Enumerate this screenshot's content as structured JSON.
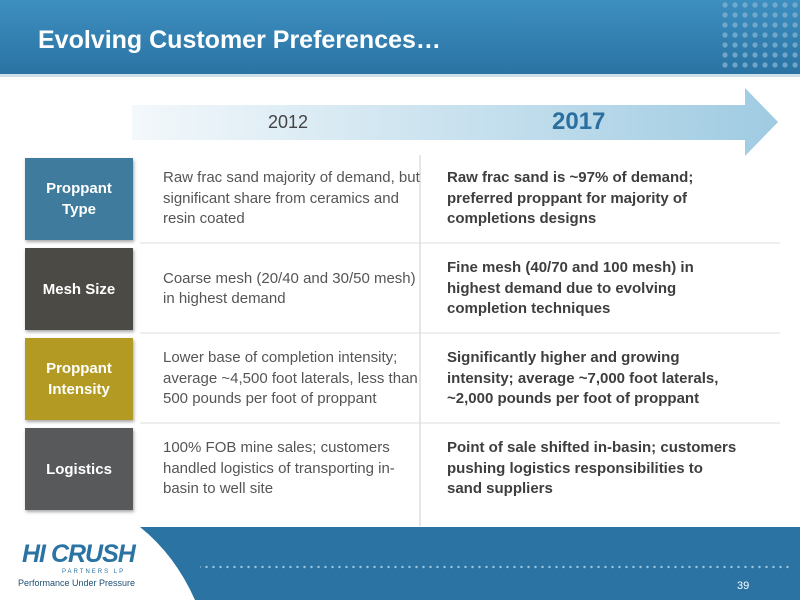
{
  "header": {
    "title": "Evolving Customer Preferences…"
  },
  "timeline": {
    "from": "2012",
    "to": "2017"
  },
  "rows": [
    {
      "label": "Proppant Type",
      "then": "Raw frac sand majority of demand, but significant share from ceramics and resin coated",
      "now": "Raw frac sand is ~97% of demand; preferred proppant for majority of completions designs"
    },
    {
      "label": "Mesh Size",
      "then": "Coarse mesh (20/40 and 30/50 mesh) in highest demand",
      "now": "Fine mesh (40/70 and 100 mesh) in highest demand due to evolving completion techniques"
    },
    {
      "label": "Proppant Intensity",
      "then": "Lower base of completion intensity; average ~4,500 foot laterals, less than 500 pounds per foot of proppant",
      "now": "Significantly higher and growing intensity; average ~7,000 foot laterals, ~2,000 pounds per foot of proppant"
    },
    {
      "label": "Logistics",
      "then": "100% FOB mine sales; customers handled logistics of transporting in-basin to well site",
      "now": "Point of sale shifted in-basin; customers pushing logistics responsibilities to sand suppliers"
    }
  ],
  "footer": {
    "logo": "HI CRUSH",
    "logo_sub": "PARTNERS LP",
    "tagline": "Performance Under Pressure",
    "page": "39"
  }
}
